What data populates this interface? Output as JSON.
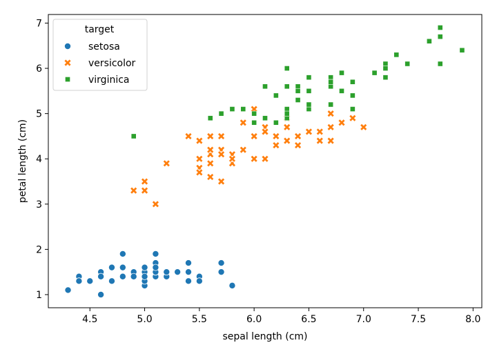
{
  "chart_data": {
    "type": "scatter",
    "title": "",
    "xlabel": "sepal length (cm)",
    "ylabel": "petal length (cm)",
    "xlim": [
      4.12,
      8.08
    ],
    "ylim": [
      0.71,
      7.19
    ],
    "xticks": [
      4.5,
      5.0,
      5.5,
      6.0,
      6.5,
      7.0,
      7.5,
      8.0
    ],
    "yticks": [
      1,
      2,
      3,
      4,
      5,
      6,
      7
    ],
    "xtick_labels": [
      "4.5",
      "5.0",
      "5.5",
      "6.0",
      "6.5",
      "7.0",
      "7.5",
      "8.0"
    ],
    "ytick_labels": [
      "1",
      "2",
      "3",
      "4",
      "5",
      "6",
      "7"
    ],
    "grid": false,
    "legend": {
      "title": "target",
      "position": "top-left"
    },
    "series": [
      {
        "name": "setosa",
        "marker": "circle",
        "color": "#1f77b4",
        "points": [
          [
            5.1,
            1.4
          ],
          [
            4.9,
            1.4
          ],
          [
            4.7,
            1.3
          ],
          [
            4.6,
            1.5
          ],
          [
            5.0,
            1.4
          ],
          [
            5.4,
            1.7
          ],
          [
            4.6,
            1.4
          ],
          [
            5.0,
            1.5
          ],
          [
            4.4,
            1.4
          ],
          [
            4.9,
            1.5
          ],
          [
            5.4,
            1.5
          ],
          [
            4.8,
            1.6
          ],
          [
            4.8,
            1.4
          ],
          [
            4.3,
            1.1
          ],
          [
            5.8,
            1.2
          ],
          [
            5.7,
            1.5
          ],
          [
            5.4,
            1.3
          ],
          [
            5.1,
            1.4
          ],
          [
            5.7,
            1.7
          ],
          [
            5.1,
            1.5
          ],
          [
            5.4,
            1.7
          ],
          [
            5.1,
            1.5
          ],
          [
            4.6,
            1.0
          ],
          [
            5.1,
            1.7
          ],
          [
            4.8,
            1.9
          ],
          [
            5.0,
            1.6
          ],
          [
            5.0,
            1.6
          ],
          [
            5.2,
            1.5
          ],
          [
            5.2,
            1.4
          ],
          [
            4.7,
            1.6
          ],
          [
            4.8,
            1.6
          ],
          [
            5.4,
            1.5
          ],
          [
            5.2,
            1.5
          ],
          [
            5.5,
            1.4
          ],
          [
            4.9,
            1.5
          ],
          [
            5.0,
            1.2
          ],
          [
            5.5,
            1.3
          ],
          [
            4.9,
            1.4
          ],
          [
            4.4,
            1.3
          ],
          [
            5.1,
            1.5
          ],
          [
            5.0,
            1.3
          ],
          [
            4.5,
            1.3
          ],
          [
            4.4,
            1.3
          ],
          [
            5.0,
            1.6
          ],
          [
            5.1,
            1.9
          ],
          [
            4.8,
            1.4
          ],
          [
            5.1,
            1.6
          ],
          [
            4.6,
            1.4
          ],
          [
            5.3,
            1.5
          ],
          [
            5.0,
            1.4
          ]
        ]
      },
      {
        "name": "versicolor",
        "marker": "x",
        "color": "#ff7f0e",
        "points": [
          [
            7.0,
            4.7
          ],
          [
            6.4,
            4.5
          ],
          [
            6.9,
            4.9
          ],
          [
            5.5,
            4.0
          ],
          [
            6.5,
            4.6
          ],
          [
            5.7,
            4.5
          ],
          [
            6.3,
            4.7
          ],
          [
            4.9,
            3.3
          ],
          [
            6.6,
            4.6
          ],
          [
            5.2,
            3.9
          ],
          [
            5.0,
            3.5
          ],
          [
            5.9,
            4.2
          ],
          [
            6.0,
            4.0
          ],
          [
            6.1,
            4.7
          ],
          [
            5.6,
            3.6
          ],
          [
            6.7,
            4.4
          ],
          [
            5.6,
            4.5
          ],
          [
            5.8,
            4.1
          ],
          [
            6.2,
            4.5
          ],
          [
            5.6,
            3.9
          ],
          [
            5.9,
            4.8
          ],
          [
            6.1,
            4.0
          ],
          [
            6.3,
            4.9
          ],
          [
            6.1,
            4.7
          ],
          [
            6.4,
            4.3
          ],
          [
            6.6,
            4.4
          ],
          [
            6.8,
            4.8
          ],
          [
            6.7,
            5.0
          ],
          [
            6.0,
            4.5
          ],
          [
            5.7,
            3.5
          ],
          [
            5.5,
            3.8
          ],
          [
            5.5,
            3.7
          ],
          [
            5.8,
            3.9
          ],
          [
            6.0,
            5.1
          ],
          [
            5.4,
            4.5
          ],
          [
            6.0,
            4.5
          ],
          [
            6.7,
            4.7
          ],
          [
            6.3,
            4.4
          ],
          [
            5.6,
            4.1
          ],
          [
            5.5,
            4.0
          ],
          [
            5.5,
            4.4
          ],
          [
            6.1,
            4.6
          ],
          [
            5.8,
            4.0
          ],
          [
            5.0,
            3.3
          ],
          [
            5.6,
            4.2
          ],
          [
            5.7,
            4.2
          ],
          [
            5.7,
            4.2
          ],
          [
            6.2,
            4.3
          ],
          [
            5.1,
            3.0
          ],
          [
            5.7,
            4.1
          ]
        ]
      },
      {
        "name": "virginica",
        "marker": "square",
        "color": "#2ca02c",
        "points": [
          [
            6.3,
            6.0
          ],
          [
            5.8,
            5.1
          ],
          [
            7.1,
            5.9
          ],
          [
            6.3,
            5.6
          ],
          [
            6.5,
            5.8
          ],
          [
            7.6,
            6.6
          ],
          [
            4.9,
            4.5
          ],
          [
            7.3,
            6.3
          ],
          [
            6.7,
            5.8
          ],
          [
            7.2,
            6.1
          ],
          [
            6.5,
            5.1
          ],
          [
            6.4,
            5.3
          ],
          [
            6.8,
            5.5
          ],
          [
            5.7,
            5.0
          ],
          [
            5.8,
            5.1
          ],
          [
            6.4,
            5.3
          ],
          [
            6.5,
            5.5
          ],
          [
            7.7,
            6.7
          ],
          [
            7.7,
            6.9
          ],
          [
            6.0,
            5.0
          ],
          [
            6.9,
            5.7
          ],
          [
            5.6,
            4.9
          ],
          [
            7.7,
            6.7
          ],
          [
            6.3,
            4.9
          ],
          [
            6.7,
            5.7
          ],
          [
            7.2,
            6.0
          ],
          [
            6.2,
            4.8
          ],
          [
            6.1,
            4.9
          ],
          [
            6.4,
            5.6
          ],
          [
            7.2,
            5.8
          ],
          [
            7.4,
            6.1
          ],
          [
            7.9,
            6.4
          ],
          [
            6.4,
            5.6
          ],
          [
            6.3,
            5.1
          ],
          [
            6.1,
            5.6
          ],
          [
            7.7,
            6.1
          ],
          [
            6.3,
            5.6
          ],
          [
            6.4,
            5.5
          ],
          [
            6.0,
            4.8
          ],
          [
            6.9,
            5.4
          ],
          [
            6.7,
            5.6
          ],
          [
            6.9,
            5.1
          ],
          [
            5.8,
            5.1
          ],
          [
            6.8,
            5.9
          ],
          [
            6.7,
            5.7
          ],
          [
            6.7,
            5.2
          ],
          [
            6.3,
            5.0
          ],
          [
            6.5,
            5.2
          ],
          [
            6.2,
            5.4
          ],
          [
            5.9,
            5.1
          ]
        ]
      }
    ]
  }
}
